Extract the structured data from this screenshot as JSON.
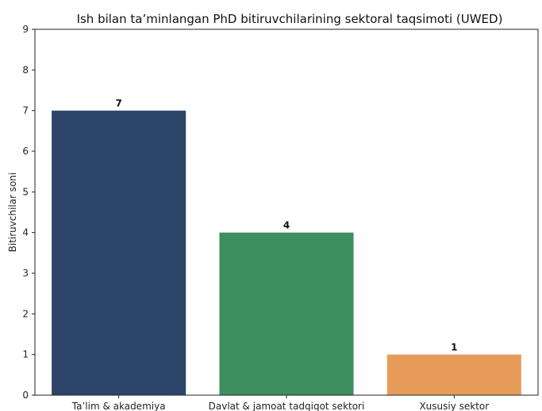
{
  "chart_data": {
    "type": "bar",
    "title": "Ish bilan ta’minlangan PhD bitiruvchilarining sektoral taqsimoti (UWED)",
    "xlabel": "",
    "ylabel": "Bitiruvchilar soni",
    "categories": [
      "Ta’lim & akademiya",
      "Davlat & jamoat tadqiqot sektori",
      "Xususiy sektor"
    ],
    "values": [
      7,
      4,
      1
    ],
    "data_labels": [
      "7",
      "4",
      "1"
    ],
    "colors": [
      "#2c4569",
      "#3d8f5f",
      "#e89c5a"
    ],
    "ylim": [
      0,
      9
    ],
    "yticks": [
      "0",
      "1",
      "2",
      "3",
      "4",
      "5",
      "6",
      "7",
      "8",
      "9"
    ],
    "grid": false,
    "legend": "none"
  }
}
